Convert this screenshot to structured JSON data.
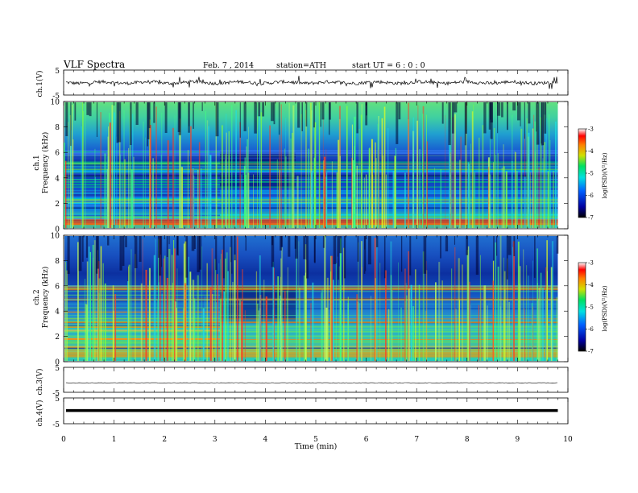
{
  "header": {
    "title": "VLF  Spectra",
    "date": "Feb. 7  , 2014",
    "station": "station=ATH",
    "start": "start  UT  =   6  : 0  : 0"
  },
  "chart_data": [
    {
      "type": "line",
      "panel": "ch1-waveform",
      "ylabel": "ch.1(V)",
      "ylim": [
        -5,
        5
      ],
      "yticks": [
        "5",
        "-5"
      ],
      "xlim": [
        0,
        10
      ],
      "description": "noisy waveform with spikes, baseline near 0 V"
    },
    {
      "type": "heatmap",
      "panel": "ch1-spectrogram",
      "ylabel": [
        "ch.1",
        "Frequency  (kHz)"
      ],
      "ylim": [
        0,
        10
      ],
      "yticks": [
        "0",
        "2",
        "4",
        "6",
        "8",
        "10"
      ],
      "xlim": [
        0,
        10
      ],
      "colorbar": {
        "label": "log(PSD)(V²/Hz)",
        "range": [
          -7,
          -3
        ],
        "ticks": [
          "-3",
          "-4",
          "-5",
          "-6",
          "-7"
        ]
      }
    },
    {
      "type": "heatmap",
      "panel": "ch2-spectrogram",
      "ylabel": [
        "ch.2",
        "Frequency  (kHz)"
      ],
      "ylim": [
        0,
        10
      ],
      "yticks": [
        "0",
        "2",
        "4",
        "6",
        "8",
        "10"
      ],
      "xlim": [
        0,
        10
      ],
      "colorbar": {
        "label": "log(PSD)(V²/Hz)",
        "range": [
          -7,
          -3
        ],
        "ticks": [
          "-3",
          "-4",
          "-5",
          "-6",
          "-7"
        ]
      }
    },
    {
      "type": "line",
      "panel": "ch3-waveform",
      "ylabel": "ch.3(V)",
      "ylim": [
        -5,
        5
      ],
      "yticks": [
        "5",
        "-5"
      ],
      "xlim": [
        0,
        10
      ],
      "description": "flat line slightly below 0 V"
    },
    {
      "type": "line",
      "panel": "ch4-waveform",
      "ylabel": "ch.4(V)",
      "ylim": [
        -5,
        5
      ],
      "yticks": [
        "5",
        "-5"
      ],
      "xlim": [
        0,
        10
      ],
      "description": "thick flat line near 0 V"
    }
  ],
  "xaxis": {
    "label": "Time  (min)",
    "ticks": [
      "0",
      "1",
      "2",
      "3",
      "4",
      "5",
      "6",
      "7",
      "8",
      "9",
      "10"
    ],
    "range": [
      0,
      10
    ]
  },
  "colors": {
    "spectrum_low": "#000060",
    "spectrum_mid": "#00c080",
    "spectrum_high": "#ff0000"
  }
}
